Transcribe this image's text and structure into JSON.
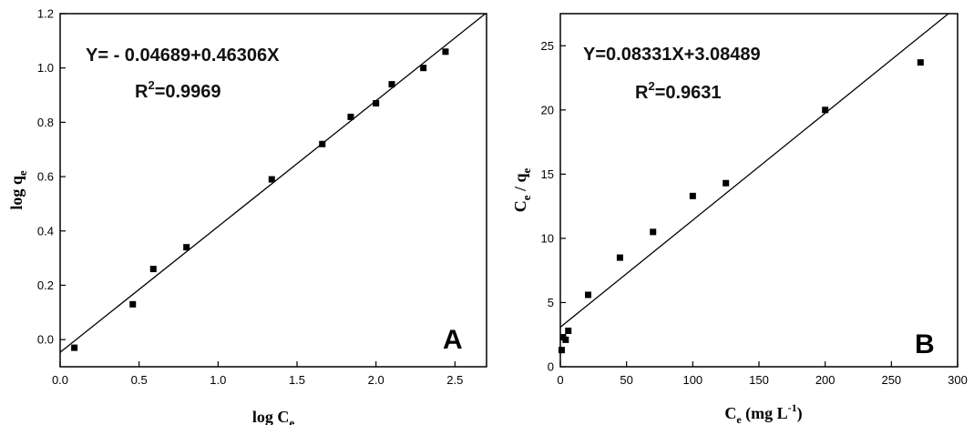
{
  "chart_data": [
    {
      "type": "scatter",
      "panel": "A",
      "xlabel": {
        "base": "log C",
        "sub": "e"
      },
      "ylabel": {
        "base": "log q",
        "sub": "e"
      },
      "xlim": [
        0.0,
        2.7
      ],
      "ylim": [
        -0.1,
        1.2
      ],
      "xticks": [
        "0.0",
        "0.5",
        "1.0",
        "1.5",
        "2.0",
        "2.5"
      ],
      "yticks": [
        "0.0",
        "0.2",
        "0.4",
        "0.6",
        "0.8",
        "1.0",
        "1.2"
      ],
      "xtick_values": [
        0.0,
        0.5,
        1.0,
        1.5,
        2.0,
        2.5
      ],
      "ytick_values": [
        0.0,
        0.2,
        0.4,
        0.6,
        0.8,
        1.0,
        1.2
      ],
      "equation": "Y= - 0.04689+0.46306X",
      "r2": {
        "base": "R",
        "sup": "2",
        "value": "=0.9969"
      },
      "x": [
        0.09,
        0.46,
        0.59,
        0.8,
        1.34,
        1.66,
        1.84,
        2.0,
        2.1,
        2.3,
        2.44
      ],
      "y": [
        -0.03,
        0.13,
        0.26,
        0.34,
        0.59,
        0.72,
        0.82,
        0.87,
        0.94,
        1.0,
        1.06
      ],
      "fit": {
        "intercept": -0.04689,
        "slope": 0.46306
      },
      "grid": false,
      "marker_color": "#000000",
      "line_color": "#000000"
    },
    {
      "type": "scatter",
      "panel": "B",
      "xlabel": {
        "base": "C",
        "sub": "e",
        "rest": " (mg L",
        "sup": "-1",
        "close": ")"
      },
      "ylabel": {
        "base": "C",
        "sub1": "e",
        "mid": " / q",
        "sub2": "e"
      },
      "xlim": [
        0,
        300
      ],
      "ylim": [
        0,
        27.5
      ],
      "xticks": [
        "0",
        "50",
        "100",
        "150",
        "200",
        "250",
        "300"
      ],
      "yticks": [
        "0",
        "5",
        "10",
        "15",
        "20",
        "25"
      ],
      "xtick_values": [
        0,
        50,
        100,
        150,
        200,
        250,
        300
      ],
      "ytick_values": [
        0,
        5,
        10,
        15,
        20,
        25
      ],
      "equation": "Y=0.08331X+3.08489",
      "r2": {
        "base": "R",
        "sup": "2",
        "value": "=0.9631"
      },
      "x": [
        1,
        2,
        4,
        6,
        21,
        45,
        70,
        100,
        125,
        200,
        272
      ],
      "y": [
        1.3,
        2.3,
        2.1,
        2.8,
        5.6,
        8.5,
        10.5,
        13.3,
        14.3,
        20.0,
        23.7
      ],
      "fit": {
        "intercept": 3.08489,
        "slope": 0.08331
      },
      "grid": false,
      "marker_color": "#000000",
      "line_color": "#000000"
    }
  ]
}
